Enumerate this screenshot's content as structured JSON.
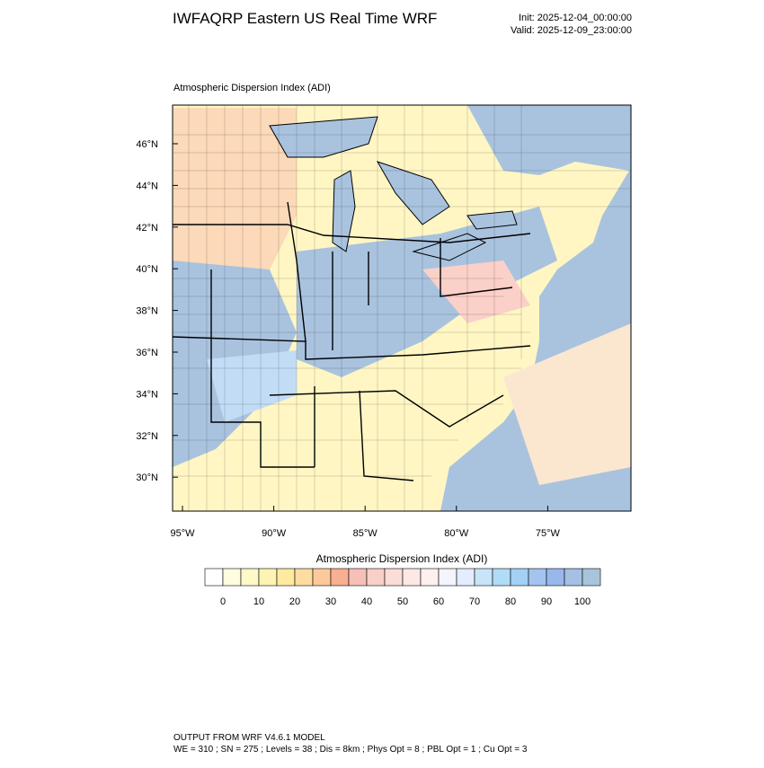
{
  "header": {
    "title": "IWFAQRP Eastern US Real Time WRF",
    "init": "Init: 2025-12-04_00:00:00",
    "valid": "Valid: 2025-12-09_23:00:00"
  },
  "map": {
    "title": "Atmospheric Dispersion Index   (ADI)",
    "lat_labels": [
      "46°N",
      "44°N",
      "42°N",
      "40°N",
      "38°N",
      "36°N",
      "34°N",
      "32°N",
      "30°N"
    ],
    "lon_labels": [
      "95°W",
      "90°W",
      "85°W",
      "80°W",
      "75°W"
    ]
  },
  "colorbar": {
    "title": "Atmospheric Dispersion Index  (ADI)",
    "ticks": [
      0,
      10,
      20,
      30,
      40,
      50,
      60,
      70,
      80,
      90,
      100
    ],
    "colors": [
      "#ffffff",
      "#fffde0",
      "#fff8c8",
      "#fff3b4",
      "#ffeaa0",
      "#ffdca0",
      "#fdc99b",
      "#f9b090",
      "#f6c0b8",
      "#f8d0c8",
      "#fbdcd6",
      "#fde8e4",
      "#fff0f0",
      "#f4f4ff",
      "#e4ecff",
      "#c8e4f8",
      "#b0dcf8",
      "#a4d0f4",
      "#a4c4f0",
      "#98b8ec",
      "#a4c0e4",
      "#a8c4dc"
    ]
  },
  "footer": {
    "line1": "OUTPUT FROM WRF V4.6.1 MODEL",
    "line2": "WE = 310 ; SN = 275 ; Levels = 38 ; Dis = 8km ; Phys Opt = 8 ; PBL Opt = 1 ; Cu Opt = 3"
  }
}
